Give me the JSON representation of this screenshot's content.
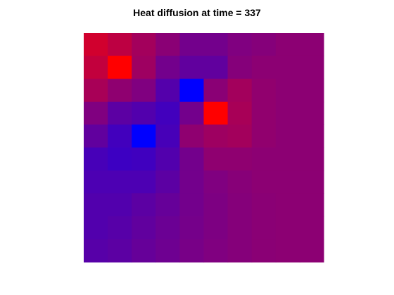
{
  "chart_data": {
    "type": "heatmap",
    "title": "Heat diffusion at time = 337",
    "xlabel": "",
    "ylabel": "",
    "rows": 10,
    "cols": 10,
    "grid": false,
    "axes_visible": false,
    "colormap": "blue-to-red",
    "color_low": "#0000ff",
    "color_high": "#ff0000",
    "value_range": [
      0,
      1
    ],
    "values": [
      [
        0.82,
        0.74,
        0.64,
        0.54,
        0.45,
        0.45,
        0.5,
        0.52,
        0.55,
        0.55
      ],
      [
        0.76,
        1.0,
        0.62,
        0.45,
        0.38,
        0.38,
        0.52,
        0.55,
        0.55,
        0.55
      ],
      [
        0.66,
        0.56,
        0.5,
        0.33,
        0.0,
        0.54,
        0.64,
        0.57,
        0.55,
        0.55
      ],
      [
        0.5,
        0.36,
        0.32,
        0.26,
        0.45,
        1.0,
        0.66,
        0.57,
        0.55,
        0.55
      ],
      [
        0.38,
        0.26,
        0.0,
        0.28,
        0.56,
        0.62,
        0.64,
        0.57,
        0.55,
        0.55
      ],
      [
        0.28,
        0.24,
        0.25,
        0.32,
        0.45,
        0.56,
        0.56,
        0.55,
        0.55,
        0.55
      ],
      [
        0.3,
        0.3,
        0.3,
        0.36,
        0.45,
        0.5,
        0.53,
        0.55,
        0.55,
        0.55
      ],
      [
        0.32,
        0.32,
        0.36,
        0.4,
        0.45,
        0.49,
        0.52,
        0.54,
        0.55,
        0.55
      ],
      [
        0.32,
        0.34,
        0.38,
        0.42,
        0.46,
        0.49,
        0.52,
        0.54,
        0.55,
        0.55
      ],
      [
        0.34,
        0.36,
        0.4,
        0.43,
        0.47,
        0.5,
        0.52,
        0.54,
        0.55,
        0.55
      ]
    ]
  }
}
